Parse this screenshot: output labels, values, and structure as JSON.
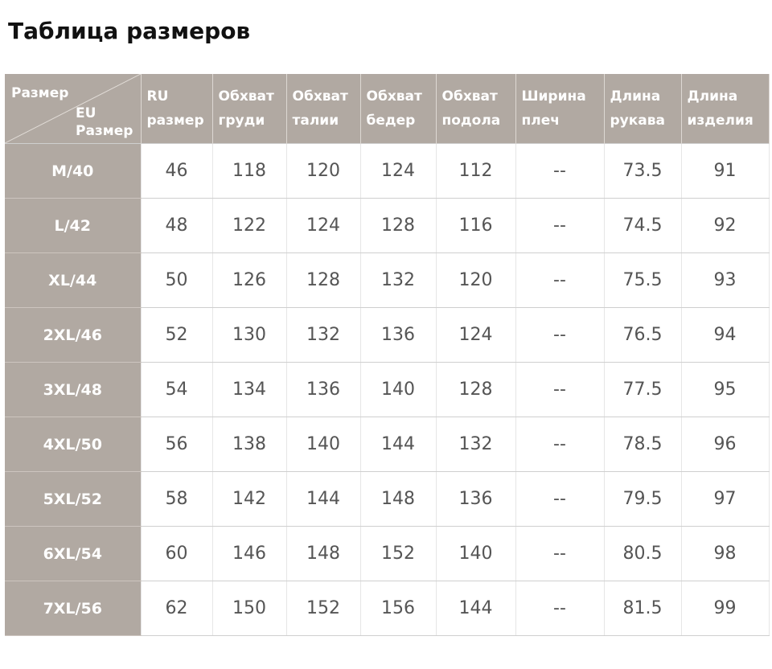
{
  "title": "Таблица размеров",
  "header": {
    "corner_top": "Размер",
    "corner_bottom_1": "EU",
    "corner_bottom_2": "Размер",
    "columns": [
      [
        "RU",
        "размер"
      ],
      [
        "Обхват",
        "груди"
      ],
      [
        "Обхват",
        "талии"
      ],
      [
        "Обхват",
        "бедер"
      ],
      [
        "Обхват",
        "подола"
      ],
      [
        "Ширина",
        "плеч"
      ],
      [
        "Длина",
        "рукава"
      ],
      [
        "Длина",
        "изделия"
      ]
    ]
  },
  "rows": [
    {
      "size": "M/40",
      "cells": [
        "46",
        "118",
        "120",
        "124",
        "112",
        "--",
        "73.5",
        "91"
      ]
    },
    {
      "size": "L/42",
      "cells": [
        "48",
        "122",
        "124",
        "128",
        "116",
        "--",
        "74.5",
        "92"
      ]
    },
    {
      "size": "XL/44",
      "cells": [
        "50",
        "126",
        "128",
        "132",
        "120",
        "--",
        "75.5",
        "93"
      ]
    },
    {
      "size": "2XL/46",
      "cells": [
        "52",
        "130",
        "132",
        "136",
        "124",
        "--",
        "76.5",
        "94"
      ]
    },
    {
      "size": "3XL/48",
      "cells": [
        "54",
        "134",
        "136",
        "140",
        "128",
        "--",
        "77.5",
        "95"
      ]
    },
    {
      "size": "4XL/50",
      "cells": [
        "56",
        "138",
        "140",
        "144",
        "132",
        "--",
        "78.5",
        "96"
      ]
    },
    {
      "size": "5XL/52",
      "cells": [
        "58",
        "142",
        "144",
        "148",
        "136",
        "--",
        "79.5",
        "97"
      ]
    },
    {
      "size": "6XL/54",
      "cells": [
        "60",
        "146",
        "148",
        "152",
        "140",
        "--",
        "80.5",
        "98"
      ]
    },
    {
      "size": "7XL/56",
      "cells": [
        "62",
        "150",
        "152",
        "156",
        "144",
        "--",
        "81.5",
        "99"
      ]
    }
  ]
}
